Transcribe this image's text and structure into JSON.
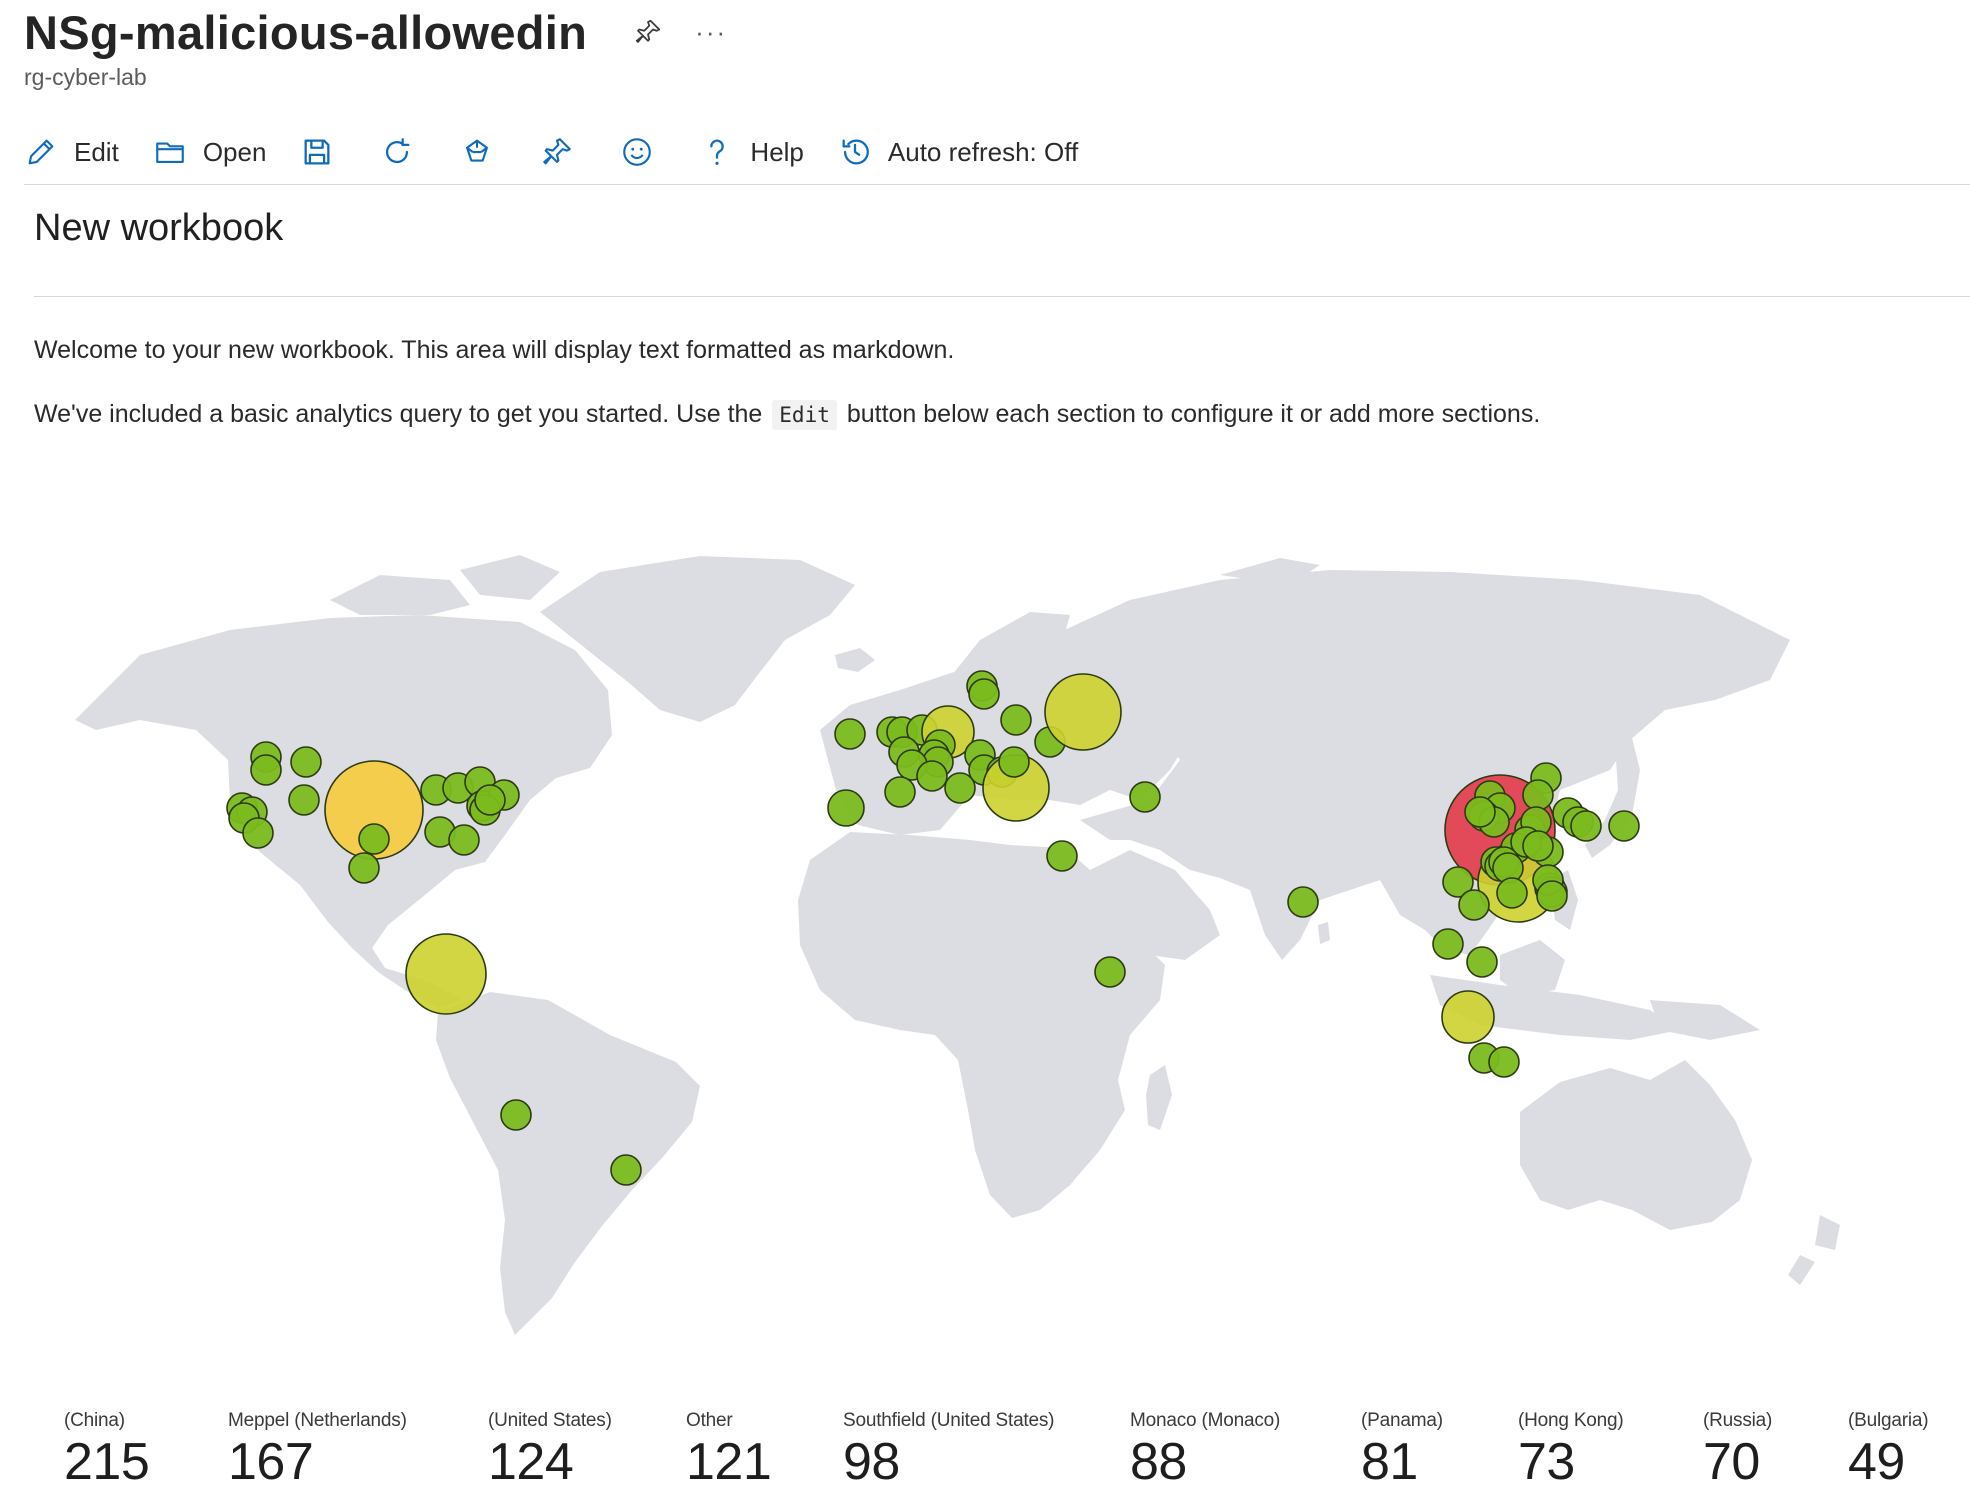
{
  "header": {
    "title": "NSg-malicious-allowedin",
    "subtitle": "rg-cyber-lab",
    "more_label": "···",
    "pin_icon": "pin-icon"
  },
  "toolbar": {
    "edit_label": "Edit",
    "open_label": "Open",
    "help_label": "Help",
    "auto_refresh_label": "Auto refresh: Off",
    "icons": [
      "pencil-icon",
      "folder-open-icon",
      "save-icon",
      "refresh-icon",
      "share-icon",
      "pin-icon",
      "smiley-icon",
      "question-icon",
      "clock-icon"
    ],
    "accent_color": "#0f6cbd"
  },
  "workbook": {
    "title": "New workbook",
    "para1": "Welcome to your new workbook. This area will display text formatted as markdown.",
    "para2_before": "We've included a basic analytics query to get you started. Use the",
    "para2_code": "Edit",
    "para2_after": "button below each section to configure it or add more sections."
  },
  "map": {
    "land_color": "#dcdde2",
    "bubble_colors": {
      "low": "#7bbb1e",
      "mid": "#cdd12f",
      "high": "#f6cb3c",
      "top": "#e2384a"
    },
    "bubble_stroke": "#2c3a12"
  },
  "summary_tiles": [
    {
      "label": "(China)",
      "value": "215"
    },
    {
      "label": "Meppel (Netherlands)",
      "value": "167"
    },
    {
      "label": "(United States)",
      "value": "124"
    },
    {
      "label": "Other",
      "value": "121"
    },
    {
      "label": "Southfield (United States)",
      "value": "98"
    },
    {
      "label": "Monaco (Monaco)",
      "value": "88"
    },
    {
      "label": "(Panama)",
      "value": "81"
    },
    {
      "label": "(Hong Kong)",
      "value": "73"
    },
    {
      "label": "(Russia)",
      "value": "70"
    },
    {
      "label": "(Bulgaria)",
      "value": "49"
    }
  ]
}
